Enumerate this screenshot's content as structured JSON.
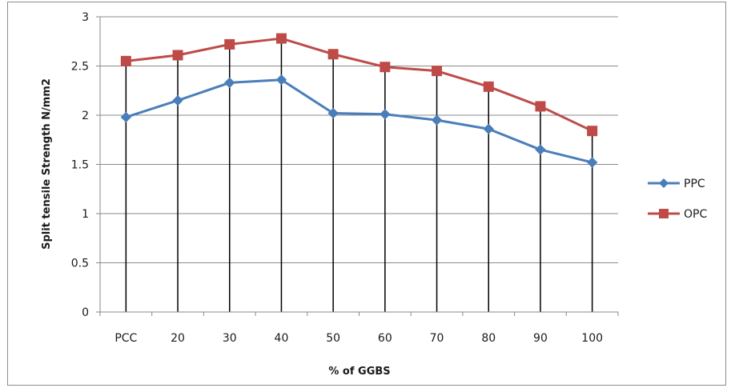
{
  "chart_data": {
    "type": "line",
    "title": "",
    "xlabel": "% of GGBS",
    "ylabel": "Split tensile Strength N/mm2",
    "categories": [
      "PCC",
      "20",
      "30",
      "40",
      "50",
      "60",
      "70",
      "80",
      "90",
      "100"
    ],
    "ylim": [
      0,
      3
    ],
    "yticks": [
      0,
      0.5,
      1,
      1.5,
      2,
      2.5,
      3
    ],
    "ytick_labels": [
      "0",
      "0.5",
      "1",
      "1.5",
      "2",
      "2.5",
      "3"
    ],
    "grid": "horizontal",
    "legend_position": "right",
    "series": [
      {
        "name": "PPC",
        "color": "#4a7ebb",
        "marker": "diamond",
        "values": [
          1.98,
          2.15,
          2.33,
          2.36,
          2.02,
          2.01,
          1.95,
          1.86,
          1.65,
          1.52
        ]
      },
      {
        "name": "OPC",
        "color": "#be4b48",
        "marker": "square",
        "values": [
          2.55,
          2.61,
          2.72,
          2.78,
          2.62,
          2.49,
          2.45,
          2.29,
          2.09,
          1.84
        ]
      }
    ]
  }
}
